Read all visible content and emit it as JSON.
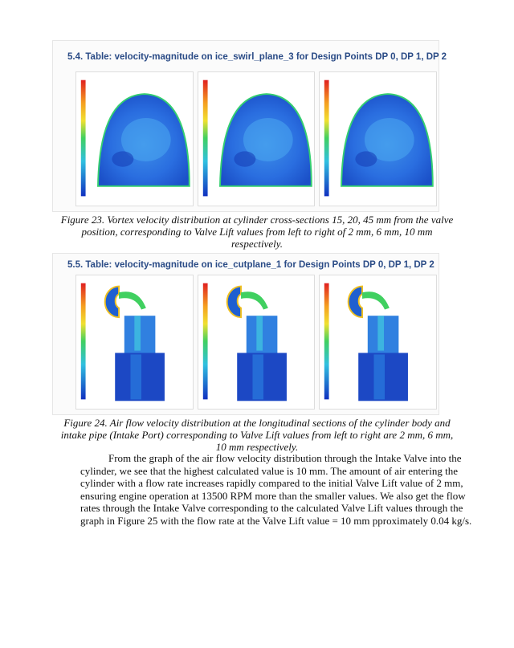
{
  "figure_23": {
    "table_heading": "5.4. Table: velocity-magnitude on ice_swirl_plane_3 for Design Points DP 0, DP 1, DP 2",
    "caption": "Figure 23. Vortex velocity distribution at cylinder cross-sections 15, 20, 45 mm from the valve position, corresponding to Valve Lift values from left to right of 2 mm, 6 mm, 10 mm respectively."
  },
  "figure_24": {
    "table_heading": "5.5. Table: velocity-magnitude on ice_cutplane_1 for Design Points DP 0, DP 1, DP 2",
    "caption": "Figure 24. Air flow velocity distribution at the longitudinal sections of the cylinder body and intake pipe (Intake Port) corresponding to Valve Lift values from left to right are 2 mm, 6 mm, 10 mm respectively."
  },
  "body": {
    "paragraph": "From the graph of the air flow velocity distribution through the Intake Valve into the cylinder, we see that the highest calculated value is 10 mm. The amount of air entering the cylinder with a flow rate increases rapidly compared to the initial Valve Lift value of 2 mm, ensuring engine operation at 13500 RPM more than the smaller values. We also get the flow rates through the Intake Valve corresponding to the calculated Valve Lift values through the graph in Figure 25 with the flow rate at the Valve Lift value = 10 mm pproximately 0.04 kg/s."
  }
}
